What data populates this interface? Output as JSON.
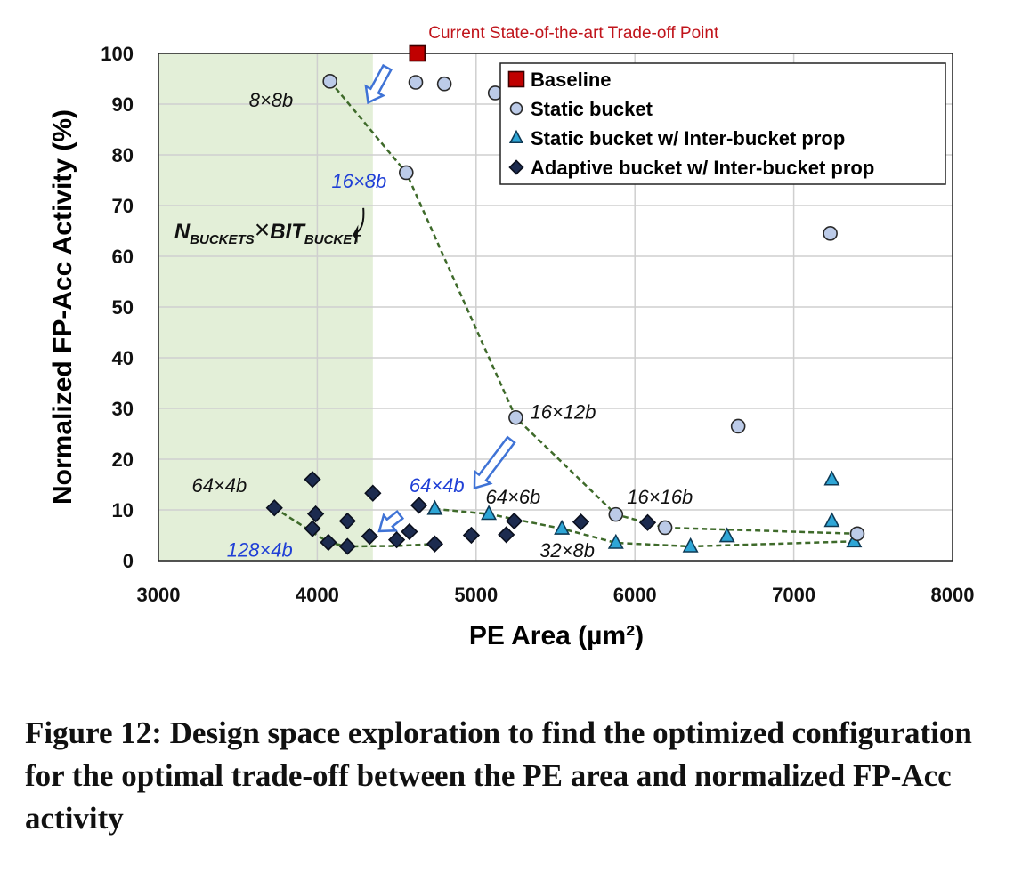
{
  "chart_data": {
    "type": "scatter",
    "xlabel": "PE Area (µm²)",
    "ylabel": "Normalized FP-Acc Activity (%)",
    "xlim": [
      3000,
      8000
    ],
    "ylim": [
      0,
      100
    ],
    "x_ticks": [
      "3000",
      "4000",
      "5000",
      "6000",
      "7000",
      "8000"
    ],
    "y_ticks": [
      "0",
      "10",
      "20",
      "30",
      "40",
      "50",
      "60",
      "70",
      "80",
      "90",
      "100"
    ],
    "grid": true,
    "legend_position": "top-right",
    "shaded_region": {
      "x_from": 3000,
      "x_to": 4350,
      "color": "#e3efd8"
    },
    "colors": {
      "baseline": "#c00000",
      "static_bucket": "#bccbe8",
      "static_inter": "#2ea6d6",
      "adaptive_inter": "#1c2b4f",
      "trend_line": "#3e6a2a",
      "arrow": "#3f73d6"
    },
    "series": [
      {
        "name": "Baseline",
        "marker": "square",
        "points": [
          {
            "x": 4630,
            "y": 100
          }
        ]
      },
      {
        "name": "Static bucket",
        "marker": "circle",
        "points": [
          {
            "x": 4080,
            "y": 94.5
          },
          {
            "x": 4620,
            "y": 94.3
          },
          {
            "x": 4800,
            "y": 94
          },
          {
            "x": 5120,
            "y": 92.2
          },
          {
            "x": 4560,
            "y": 76.5
          },
          {
            "x": 7230,
            "y": 64.5
          },
          {
            "x": 5250,
            "y": 28.2
          },
          {
            "x": 6650,
            "y": 26.5
          },
          {
            "x": 5880,
            "y": 9.1
          },
          {
            "x": 6190,
            "y": 6.5
          },
          {
            "x": 7400,
            "y": 5.3
          }
        ]
      },
      {
        "name": "Static bucket w/ Inter-bucket prop",
        "marker": "triangle",
        "points": [
          {
            "x": 4740,
            "y": 10.2
          },
          {
            "x": 5080,
            "y": 9.2
          },
          {
            "x": 5540,
            "y": 6.3
          },
          {
            "x": 5880,
            "y": 3.5
          },
          {
            "x": 6350,
            "y": 2.8
          },
          {
            "x": 6580,
            "y": 4.8
          },
          {
            "x": 7240,
            "y": 16
          },
          {
            "x": 7240,
            "y": 7.8
          },
          {
            "x": 7380,
            "y": 3.8
          }
        ]
      },
      {
        "name": "Adaptive bucket w/ Inter-bucket prop",
        "marker": "diamond",
        "points": [
          {
            "x": 3730,
            "y": 10.4
          },
          {
            "x": 3970,
            "y": 16
          },
          {
            "x": 3990,
            "y": 9.2
          },
          {
            "x": 3970,
            "y": 6.3
          },
          {
            "x": 4070,
            "y": 3.6
          },
          {
            "x": 4190,
            "y": 7.8
          },
          {
            "x": 4190,
            "y": 2.8
          },
          {
            "x": 4330,
            "y": 4.8
          },
          {
            "x": 4350,
            "y": 13.3
          },
          {
            "x": 4500,
            "y": 4.1
          },
          {
            "x": 4580,
            "y": 5.7
          },
          {
            "x": 4640,
            "y": 10.9
          },
          {
            "x": 4740,
            "y": 3.3
          },
          {
            "x": 4970,
            "y": 5
          },
          {
            "x": 5190,
            "y": 5.1
          },
          {
            "x": 5240,
            "y": 7.8
          },
          {
            "x": 5660,
            "y": 7.6
          },
          {
            "x": 6080,
            "y": 7.5
          }
        ]
      }
    ],
    "trend_lines": [
      {
        "name": "static",
        "points": [
          [
            4080,
            94.5
          ],
          [
            4560,
            76.5
          ],
          [
            5250,
            28.2
          ],
          [
            5880,
            9.1
          ],
          [
            6190,
            6.5
          ],
          [
            7400,
            5.3
          ]
        ]
      },
      {
        "name": "static-inter",
        "points": [
          [
            4740,
            10.2
          ],
          [
            5080,
            9.2
          ],
          [
            5540,
            6.3
          ],
          [
            5880,
            3.5
          ],
          [
            6350,
            2.8
          ],
          [
            7380,
            3.8
          ]
        ]
      },
      {
        "name": "adaptive",
        "points": [
          [
            3730,
            10.4
          ],
          [
            4070,
            3.6
          ],
          [
            4190,
            2.8
          ],
          [
            4500,
            2.9
          ],
          [
            4740,
            3.3
          ]
        ]
      }
    ],
    "annotations": [
      {
        "key": "baseline_note",
        "text": "Current State-of-the-art Trade-off Point",
        "x": 4700,
        "y": 103,
        "style": "red"
      },
      {
        "key": "a_8x8",
        "text": "8×8b",
        "x": 3570,
        "y": 89.5,
        "style": "plain"
      },
      {
        "key": "a_16x8",
        "text": "16×8b",
        "x": 4090,
        "y": 73.5,
        "style": "blue"
      },
      {
        "key": "a_16x12",
        "text": "16×12b",
        "x": 5340,
        "y": 28,
        "style": "plain"
      },
      {
        "key": "a_64x4_left",
        "text": "64×4b",
        "x": 3210,
        "y": 13.5,
        "style": "plain"
      },
      {
        "key": "a_64x4_blue",
        "text": "64×4b",
        "x": 4580,
        "y": 13.5,
        "style": "blue"
      },
      {
        "key": "a_64x6",
        "text": "64×6b",
        "x": 5060,
        "y": 11.2,
        "style": "plain"
      },
      {
        "key": "a_16x16",
        "text": "16×16b",
        "x": 5950,
        "y": 11.2,
        "style": "plain"
      },
      {
        "key": "a_128x4",
        "text": "128×4b",
        "x": 3430,
        "y": 0.8,
        "style": "blue"
      },
      {
        "key": "a_32x8",
        "text": "32×8b",
        "x": 5400,
        "y": 0.7,
        "style": "plain"
      }
    ],
    "formula_label": {
      "n": "N",
      "n_sub": "BUCKETS",
      "times": "×",
      "bit": "BIT",
      "bit_sub": "BUCKET"
    }
  },
  "caption": "Figure 12: Design space exploration to find the optimized configuration for the optimal trade-off between the PE area and normalized FP-Acc activity"
}
